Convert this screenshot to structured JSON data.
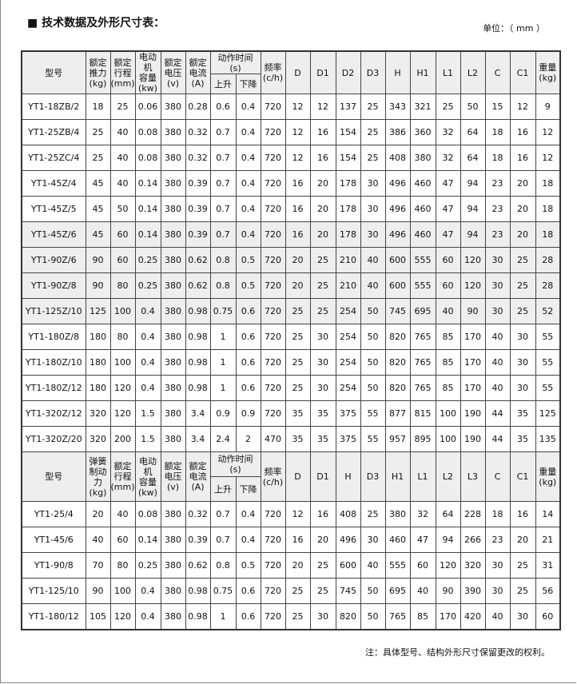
{
  "title": "■ 技术数据及外形尺寸表：",
  "unit": "单位：（ mm ）",
  "table1": {
    "headers": [
      "型号",
      "额定\n推力\n(kg)",
      "额定\n行程\n(mm)",
      "电动机\n容量\n(kw)",
      "额定\n电压\n(v)",
      "额定\n电流\n(A)",
      "动作时间\n(s)",
      "上升",
      "下降",
      "频率\n(c/h)",
      "D",
      "D1",
      "D2",
      "D3",
      "H",
      "H1",
      "L1",
      "L2",
      "C",
      "C1",
      "重量\n(kg)"
    ],
    "rows": [
      [
        "YT1-18ZB/2",
        "18",
        "25",
        "0.06",
        "380",
        "0.28",
        "0.6",
        "0.4",
        "720",
        "12",
        "12",
        "137",
        "25",
        "343",
        "321",
        "25",
        "50",
        "15",
        "12",
        "9"
      ],
      [
        "YT1-25ZB/4",
        "25",
        "40",
        "0.08",
        "380",
        "0.32",
        "0.7",
        "0.4",
        "720",
        "12",
        "16",
        "154",
        "25",
        "386",
        "360",
        "32",
        "64",
        "18",
        "16",
        "12"
      ],
      [
        "YT1-25ZC/4",
        "25",
        "40",
        "0.08",
        "380",
        "0.32",
        "0.7",
        "0.4",
        "720",
        "12",
        "16",
        "154",
        "25",
        "408",
        "380",
        "32",
        "64",
        "18",
        "16",
        "12"
      ],
      [
        "YT1-45Z/4",
        "45",
        "40",
        "0.14",
        "380",
        "0.39",
        "0.7",
        "0.4",
        "720",
        "16",
        "20",
        "178",
        "30",
        "496",
        "460",
        "47",
        "94",
        "23",
        "20",
        "18"
      ],
      [
        "YT1-45Z/5",
        "45",
        "50",
        "0.14",
        "380",
        "0.39",
        "0.7",
        "0.4",
        "720",
        "16",
        "20",
        "178",
        "30",
        "496",
        "460",
        "47",
        "94",
        "23",
        "20",
        "18"
      ],
      [
        "YT1-45Z/6",
        "45",
        "60",
        "0.14",
        "380",
        "0.39",
        "0.7",
        "0.4",
        "720",
        "16",
        "20",
        "178",
        "30",
        "496",
        "460",
        "47",
        "94",
        "23",
        "20",
        "18"
      ],
      [
        "YT1-90Z/6",
        "90",
        "60",
        "0.25",
        "380",
        "0.62",
        "0.8",
        "0.5",
        "720",
        "20",
        "25",
        "210",
        "40",
        "600",
        "555",
        "60",
        "120",
        "30",
        "25",
        "28"
      ],
      [
        "YT1-90Z/8",
        "90",
        "80",
        "0.25",
        "380",
        "0.62",
        "0.8",
        "0.5",
        "720",
        "20",
        "25",
        "210",
        "40",
        "600",
        "555",
        "60",
        "120",
        "30",
        "25",
        "28"
      ],
      [
        "YT1-125Z/10",
        "125",
        "100",
        "0.4",
        "380",
        "0.98",
        "0.75",
        "0.6",
        "720",
        "25",
        "25",
        "254",
        "50",
        "745",
        "695",
        "40",
        "90",
        "30",
        "25",
        "52"
      ],
      [
        "YT1-180Z/8",
        "180",
        "80",
        "0.4",
        "380",
        "0.98",
        "1",
        "0.6",
        "720",
        "25",
        "30",
        "254",
        "50",
        "820",
        "765",
        "85",
        "170",
        "40",
        "30",
        "55"
      ],
      [
        "YT1-180Z/10",
        "180",
        "100",
        "0.4",
        "380",
        "0.98",
        "1",
        "0.6",
        "720",
        "25",
        "30",
        "254",
        "50",
        "820",
        "765",
        "85",
        "170",
        "40",
        "30",
        "55"
      ],
      [
        "YT1-180Z/12",
        "180",
        "120",
        "0.4",
        "380",
        "0.98",
        "1",
        "0.6",
        "720",
        "25",
        "30",
        "254",
        "50",
        "820",
        "765",
        "85",
        "170",
        "40",
        "30",
        "55"
      ],
      [
        "YT1-320Z/12",
        "320",
        "120",
        "1.5",
        "380",
        "3.4",
        "0.9",
        "0.9",
        "720",
        "35",
        "35",
        "375",
        "55",
        "877",
        "815",
        "100",
        "190",
        "44",
        "35",
        "125"
      ],
      [
        "YT1-320Z/20",
        "320",
        "200",
        "1.5",
        "380",
        "3.4",
        "2.4",
        "2",
        "470",
        "35",
        "35",
        "375",
        "55",
        "957",
        "895",
        "100",
        "190",
        "44",
        "35",
        "135"
      ]
    ]
  },
  "table2": {
    "headers": [
      "型号",
      "弹簧\n制动力\n(kg)",
      "额定\n行程\n(mm)",
      "电动机\n容量\n(kw)",
      "额定\n电压\n(v)",
      "额定\n电流\n(A)",
      "动作时间\n(s)",
      "上升",
      "下降",
      "频率\n(c/h)",
      "D",
      "D1",
      "H",
      "D3",
      "H1",
      "L1",
      "L2",
      "L3",
      "C",
      "C1",
      "重量\n(kg)"
    ],
    "rows": [
      [
        "YT1-25/4",
        "20",
        "40",
        "0.08",
        "380",
        "0.32",
        "0.7",
        "0.4",
        "720",
        "12",
        "16",
        "408",
        "25",
        "380",
        "32",
        "64",
        "228",
        "18",
        "16",
        "14"
      ],
      [
        "YT1-45/6",
        "40",
        "60",
        "0.14",
        "380",
        "0.39",
        "0.7",
        "0.4",
        "720",
        "16",
        "20",
        "496",
        "30",
        "460",
        "47",
        "94",
        "266",
        "23",
        "20",
        "21"
      ],
      [
        "YT1-90/8",
        "70",
        "80",
        "0.25",
        "380",
        "0.62",
        "0.8",
        "0.5",
        "720",
        "20",
        "25",
        "600",
        "40",
        "555",
        "60",
        "120",
        "320",
        "30",
        "25",
        "31"
      ],
      [
        "YT1-125/10",
        "90",
        "100",
        "0.4",
        "380",
        "0.98",
        "0.75",
        "0.6",
        "720",
        "25",
        "25",
        "745",
        "50",
        "695",
        "40",
        "90",
        "390",
        "30",
        "25",
        "56"
      ],
      [
        "YT1-180/12",
        "105",
        "120",
        "0.4",
        "380",
        "0.98",
        "1",
        "0.6",
        "720",
        "25",
        "30",
        "820",
        "50",
        "765",
        "85",
        "170",
        "420",
        "40",
        "30",
        "60"
      ]
    ]
  },
  "shaded_rows": [
    5,
    6,
    7,
    8
  ],
  "note": "注：具体型号、结构外形尺寸保留更改的权利。"
}
